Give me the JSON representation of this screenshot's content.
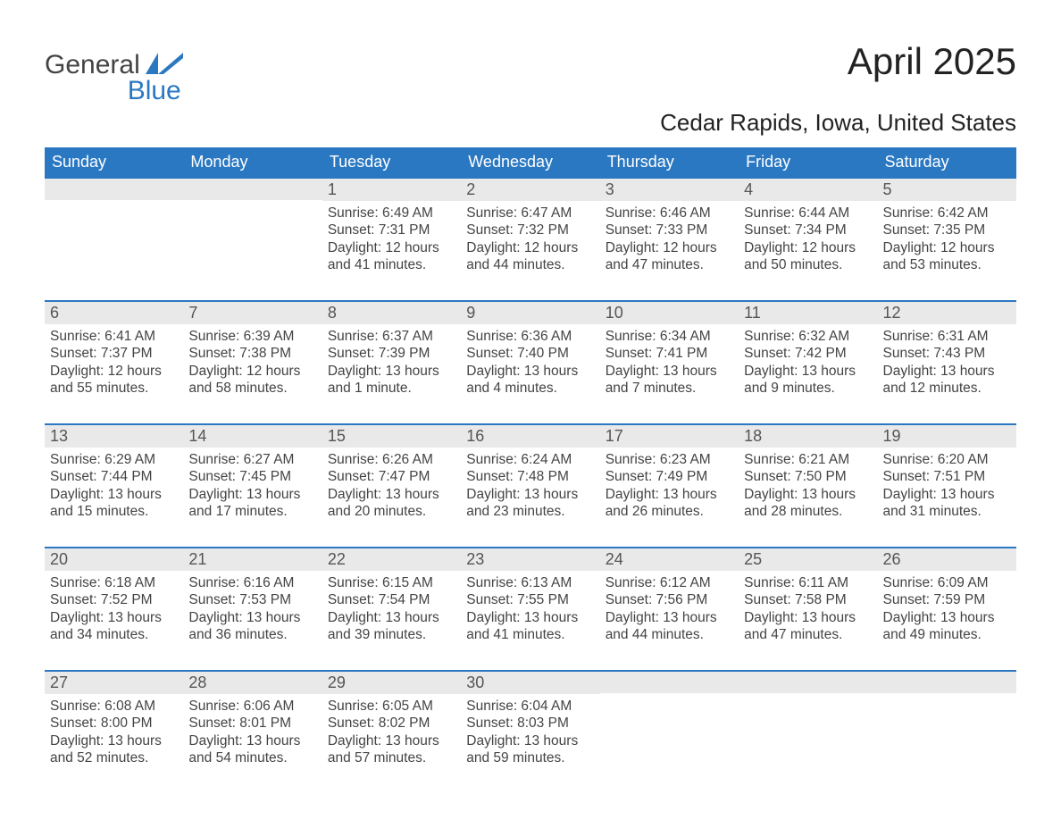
{
  "logo": {
    "word1": "General",
    "word2": "Blue",
    "flag_color": "#2b78c2",
    "text_color_dark": "#444444",
    "text_color_blue": "#2b78c2"
  },
  "title": "April 2025",
  "subtitle": "Cedar Rapids, Iowa, United States",
  "colors": {
    "header_bg": "#2b78c2",
    "header_text": "#ffffff",
    "daynum_bg": "#e9e9e9",
    "border": "#2b78c2",
    "body_text": "#444444",
    "background": "#ffffff"
  },
  "typography": {
    "title_fontsize": 42,
    "subtitle_fontsize": 26,
    "header_fontsize": 18,
    "daynum_fontsize": 18,
    "body_fontsize": 15.5
  },
  "layout": {
    "columns": 7,
    "rows": 5
  },
  "weekdays": [
    "Sunday",
    "Monday",
    "Tuesday",
    "Wednesday",
    "Thursday",
    "Friday",
    "Saturday"
  ],
  "weeks": [
    [
      {
        "day": "",
        "lines": []
      },
      {
        "day": "",
        "lines": []
      },
      {
        "day": "1",
        "lines": [
          "Sunrise: 6:49 AM",
          "Sunset: 7:31 PM",
          "Daylight: 12 hours and 41 minutes."
        ]
      },
      {
        "day": "2",
        "lines": [
          "Sunrise: 6:47 AM",
          "Sunset: 7:32 PM",
          "Daylight: 12 hours and 44 minutes."
        ]
      },
      {
        "day": "3",
        "lines": [
          "Sunrise: 6:46 AM",
          "Sunset: 7:33 PM",
          "Daylight: 12 hours and 47 minutes."
        ]
      },
      {
        "day": "4",
        "lines": [
          "Sunrise: 6:44 AM",
          "Sunset: 7:34 PM",
          "Daylight: 12 hours and 50 minutes."
        ]
      },
      {
        "day": "5",
        "lines": [
          "Sunrise: 6:42 AM",
          "Sunset: 7:35 PM",
          "Daylight: 12 hours and 53 minutes."
        ]
      }
    ],
    [
      {
        "day": "6",
        "lines": [
          "Sunrise: 6:41 AM",
          "Sunset: 7:37 PM",
          "Daylight: 12 hours and 55 minutes."
        ]
      },
      {
        "day": "7",
        "lines": [
          "Sunrise: 6:39 AM",
          "Sunset: 7:38 PM",
          "Daylight: 12 hours and 58 minutes."
        ]
      },
      {
        "day": "8",
        "lines": [
          "Sunrise: 6:37 AM",
          "Sunset: 7:39 PM",
          "Daylight: 13 hours and 1 minute."
        ]
      },
      {
        "day": "9",
        "lines": [
          "Sunrise: 6:36 AM",
          "Sunset: 7:40 PM",
          "Daylight: 13 hours and 4 minutes."
        ]
      },
      {
        "day": "10",
        "lines": [
          "Sunrise: 6:34 AM",
          "Sunset: 7:41 PM",
          "Daylight: 13 hours and 7 minutes."
        ]
      },
      {
        "day": "11",
        "lines": [
          "Sunrise: 6:32 AM",
          "Sunset: 7:42 PM",
          "Daylight: 13 hours and 9 minutes."
        ]
      },
      {
        "day": "12",
        "lines": [
          "Sunrise: 6:31 AM",
          "Sunset: 7:43 PM",
          "Daylight: 13 hours and 12 minutes."
        ]
      }
    ],
    [
      {
        "day": "13",
        "lines": [
          "Sunrise: 6:29 AM",
          "Sunset: 7:44 PM",
          "Daylight: 13 hours and 15 minutes."
        ]
      },
      {
        "day": "14",
        "lines": [
          "Sunrise: 6:27 AM",
          "Sunset: 7:45 PM",
          "Daylight: 13 hours and 17 minutes."
        ]
      },
      {
        "day": "15",
        "lines": [
          "Sunrise: 6:26 AM",
          "Sunset: 7:47 PM",
          "Daylight: 13 hours and 20 minutes."
        ]
      },
      {
        "day": "16",
        "lines": [
          "Sunrise: 6:24 AM",
          "Sunset: 7:48 PM",
          "Daylight: 13 hours and 23 minutes."
        ]
      },
      {
        "day": "17",
        "lines": [
          "Sunrise: 6:23 AM",
          "Sunset: 7:49 PM",
          "Daylight: 13 hours and 26 minutes."
        ]
      },
      {
        "day": "18",
        "lines": [
          "Sunrise: 6:21 AM",
          "Sunset: 7:50 PM",
          "Daylight: 13 hours and 28 minutes."
        ]
      },
      {
        "day": "19",
        "lines": [
          "Sunrise: 6:20 AM",
          "Sunset: 7:51 PM",
          "Daylight: 13 hours and 31 minutes."
        ]
      }
    ],
    [
      {
        "day": "20",
        "lines": [
          "Sunrise: 6:18 AM",
          "Sunset: 7:52 PM",
          "Daylight: 13 hours and 34 minutes."
        ]
      },
      {
        "day": "21",
        "lines": [
          "Sunrise: 6:16 AM",
          "Sunset: 7:53 PM",
          "Daylight: 13 hours and 36 minutes."
        ]
      },
      {
        "day": "22",
        "lines": [
          "Sunrise: 6:15 AM",
          "Sunset: 7:54 PM",
          "Daylight: 13 hours and 39 minutes."
        ]
      },
      {
        "day": "23",
        "lines": [
          "Sunrise: 6:13 AM",
          "Sunset: 7:55 PM",
          "Daylight: 13 hours and 41 minutes."
        ]
      },
      {
        "day": "24",
        "lines": [
          "Sunrise: 6:12 AM",
          "Sunset: 7:56 PM",
          "Daylight: 13 hours and 44 minutes."
        ]
      },
      {
        "day": "25",
        "lines": [
          "Sunrise: 6:11 AM",
          "Sunset: 7:58 PM",
          "Daylight: 13 hours and 47 minutes."
        ]
      },
      {
        "day": "26",
        "lines": [
          "Sunrise: 6:09 AM",
          "Sunset: 7:59 PM",
          "Daylight: 13 hours and 49 minutes."
        ]
      }
    ],
    [
      {
        "day": "27",
        "lines": [
          "Sunrise: 6:08 AM",
          "Sunset: 8:00 PM",
          "Daylight: 13 hours and 52 minutes."
        ]
      },
      {
        "day": "28",
        "lines": [
          "Sunrise: 6:06 AM",
          "Sunset: 8:01 PM",
          "Daylight: 13 hours and 54 minutes."
        ]
      },
      {
        "day": "29",
        "lines": [
          "Sunrise: 6:05 AM",
          "Sunset: 8:02 PM",
          "Daylight: 13 hours and 57 minutes."
        ]
      },
      {
        "day": "30",
        "lines": [
          "Sunrise: 6:04 AM",
          "Sunset: 8:03 PM",
          "Daylight: 13 hours and 59 minutes."
        ]
      },
      {
        "day": "",
        "lines": []
      },
      {
        "day": "",
        "lines": []
      },
      {
        "day": "",
        "lines": []
      }
    ]
  ]
}
